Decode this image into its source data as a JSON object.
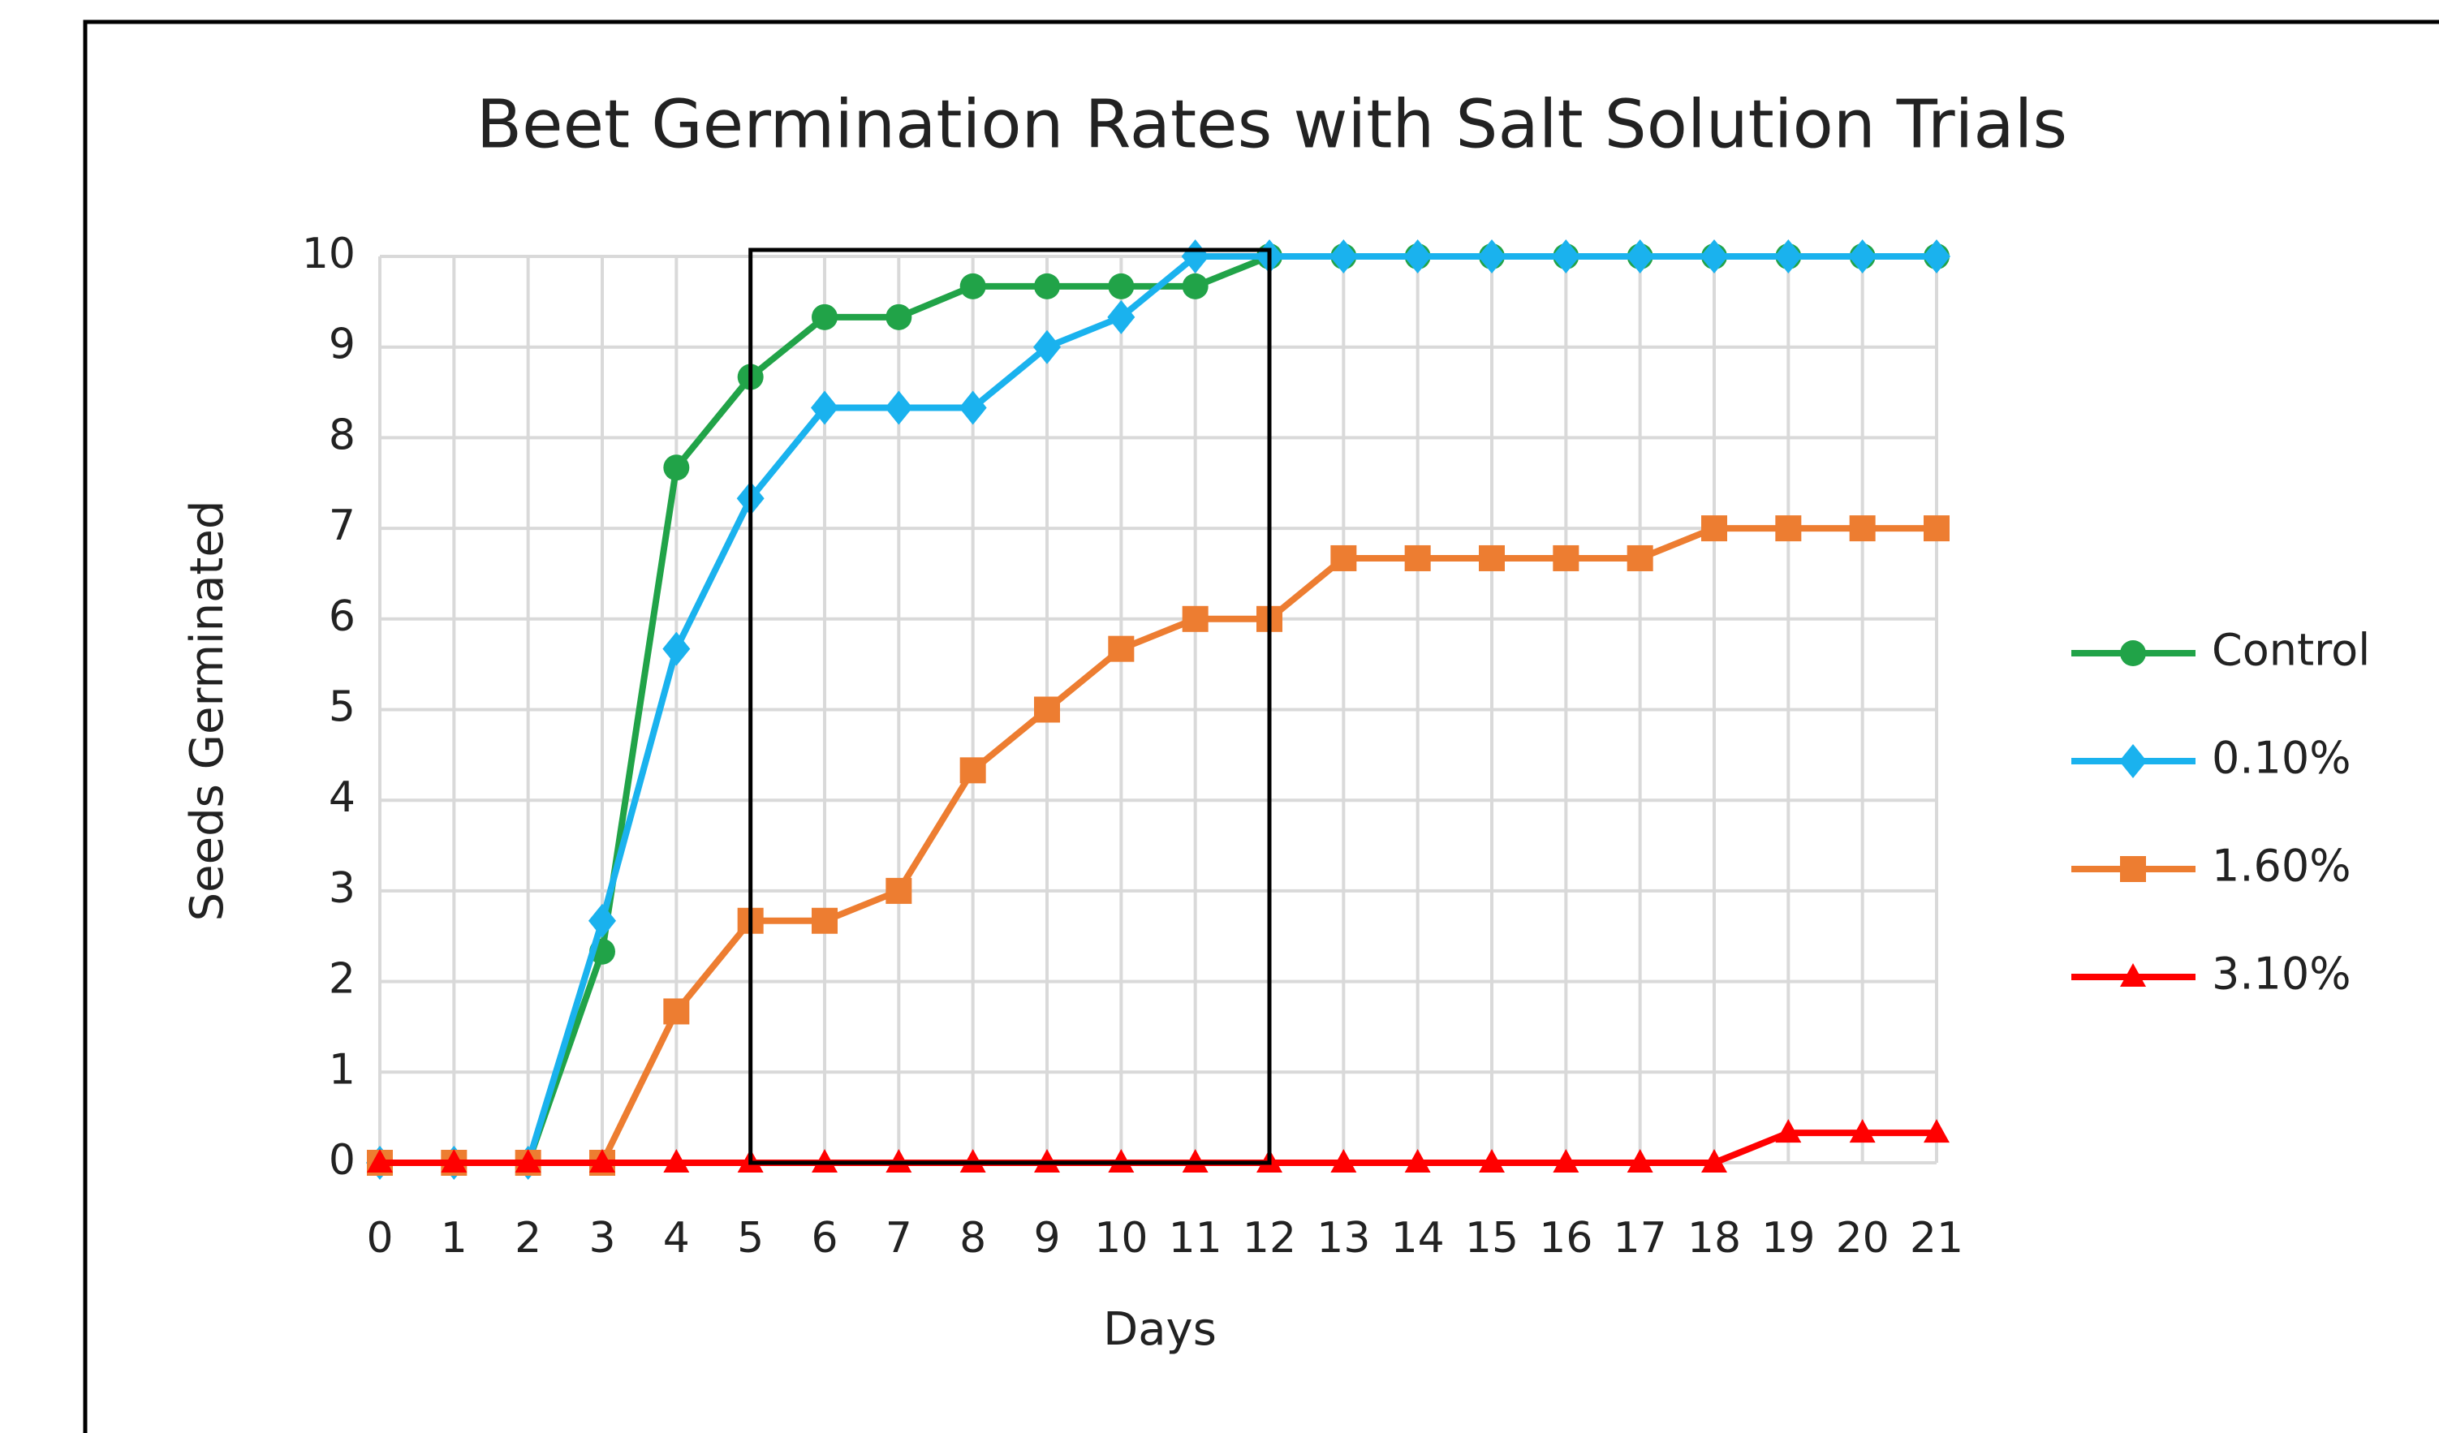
{
  "chart_data": {
    "type": "line",
    "title": "Beet Germination Rates with Salt Solution Trials",
    "xlabel": "Days",
    "ylabel": "Seeds Germinated",
    "x": [
      0,
      1,
      2,
      3,
      4,
      5,
      6,
      7,
      8,
      9,
      10,
      11,
      12,
      13,
      14,
      15,
      16,
      17,
      18,
      19,
      20,
      21
    ],
    "xlim": [
      0,
      21
    ],
    "xticks": [
      0,
      1,
      2,
      3,
      4,
      5,
      6,
      7,
      8,
      9,
      10,
      11,
      12,
      13,
      14,
      15,
      16,
      17,
      18,
      19,
      20,
      21
    ],
    "ylim": [
      0,
      10
    ],
    "yticks": [
      0,
      1,
      2,
      3,
      4,
      5,
      6,
      7,
      8,
      9,
      10
    ],
    "grid": true,
    "legend": "right",
    "highlight_x": [
      5,
      12
    ],
    "series": [
      {
        "name": "Control",
        "color": "#21a348",
        "marker": "circle",
        "values": [
          0,
          0,
          0,
          2.33,
          7.67,
          8.67,
          9.33,
          9.33,
          9.67,
          9.67,
          9.67,
          9.67,
          10,
          10,
          10,
          10,
          10,
          10,
          10,
          10,
          10,
          10
        ]
      },
      {
        "name": "0.10%",
        "color": "#1ab2ee",
        "marker": "diamond",
        "values": [
          0,
          0,
          0,
          2.67,
          5.67,
          7.33,
          8.33,
          8.33,
          8.33,
          9,
          9.33,
          10,
          10,
          10,
          10,
          10,
          10,
          10,
          10,
          10,
          10,
          10
        ]
      },
      {
        "name": "1.60%",
        "color": "#ed7d31",
        "marker": "square",
        "values": [
          0,
          0,
          0,
          0,
          1.67,
          2.67,
          2.67,
          3,
          4.33,
          5,
          5.67,
          6,
          6,
          6.67,
          6.67,
          6.67,
          6.67,
          6.67,
          7,
          7,
          7,
          7
        ]
      },
      {
        "name": "3.10%",
        "color": "#ff0000",
        "marker": "triangle",
        "values": [
          0,
          0,
          0,
          0,
          0,
          0,
          0,
          0,
          0,
          0,
          0,
          0,
          0,
          0,
          0,
          0,
          0,
          0,
          0,
          0.33,
          0.33,
          0.33
        ]
      }
    ]
  }
}
